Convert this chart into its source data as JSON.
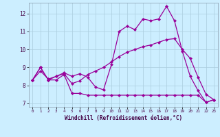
{
  "xlabel": "Windchill (Refroidissement éolien,°C)",
  "background_color": "#cceeff",
  "grid_color": "#aaccdd",
  "line_color": "#990099",
  "xlim": [
    -0.5,
    23.5
  ],
  "ylim": [
    6.8,
    12.6
  ],
  "yticks": [
    7,
    8,
    9,
    10,
    11,
    12
  ],
  "xticks": [
    0,
    1,
    2,
    3,
    4,
    5,
    6,
    7,
    8,
    9,
    10,
    11,
    12,
    13,
    14,
    15,
    16,
    17,
    18,
    19,
    20,
    21,
    22,
    23
  ],
  "line1_x": [
    0,
    1,
    2,
    3,
    4,
    5,
    6,
    7,
    8,
    9,
    10,
    11,
    12,
    13,
    14,
    15,
    16,
    17,
    18,
    19,
    20,
    21,
    22,
    23
  ],
  "line1_y": [
    8.3,
    9.0,
    8.3,
    8.3,
    8.6,
    7.55,
    7.55,
    7.45,
    7.45,
    7.45,
    7.45,
    7.45,
    7.45,
    7.45,
    7.45,
    7.45,
    7.45,
    7.45,
    7.45,
    7.45,
    7.45,
    7.45,
    7.05,
    7.2
  ],
  "line2_x": [
    0,
    1,
    2,
    3,
    4,
    5,
    6,
    7,
    8,
    9,
    10,
    11,
    12,
    13,
    14,
    15,
    16,
    17,
    18,
    19,
    20,
    21,
    22,
    23
  ],
  "line2_y": [
    8.3,
    9.0,
    8.3,
    8.5,
    8.7,
    8.5,
    8.65,
    8.45,
    7.9,
    7.75,
    9.15,
    11.0,
    11.3,
    11.1,
    11.7,
    11.6,
    11.7,
    12.4,
    11.6,
    9.9,
    8.5,
    7.7,
    7.05,
    7.2
  ],
  "line3_x": [
    0,
    1,
    2,
    3,
    4,
    5,
    6,
    7,
    8,
    9,
    10,
    11,
    12,
    13,
    14,
    15,
    16,
    17,
    18,
    19,
    20,
    21,
    22,
    23
  ],
  "line3_y": [
    8.3,
    8.8,
    8.35,
    8.5,
    8.65,
    8.1,
    8.25,
    8.6,
    8.8,
    9.0,
    9.3,
    9.6,
    9.85,
    10.0,
    10.15,
    10.25,
    10.4,
    10.55,
    10.6,
    10.0,
    9.5,
    8.45,
    7.5,
    7.2
  ]
}
